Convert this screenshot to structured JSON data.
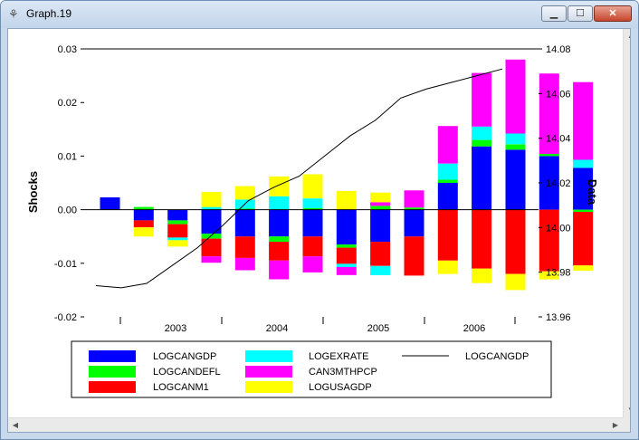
{
  "window": {
    "title": "Graph.19",
    "icons": {
      "app": "graph-app-icon",
      "min": "minimize-icon",
      "max": "maximize-icon",
      "close": "close-icon"
    }
  },
  "chart_data": {
    "type": "bar",
    "stacked": true,
    "title": "",
    "ylabel_left": "Shocks",
    "ylabel_right": "Data",
    "ylim_left": [
      -0.02,
      0.03
    ],
    "ylim_right": [
      13.96,
      14.08
    ],
    "yticks_left": [
      "0.03",
      "0.02",
      "0.01",
      "0.00",
      "-0.01",
      "-0.02"
    ],
    "yticks_right": [
      "14.08",
      "14.06",
      "14.04",
      "14.02",
      "14.00",
      "13.98",
      "13.96"
    ],
    "x_labels": [
      "2003",
      "2004",
      "2005",
      "2006"
    ],
    "periods_per_year": 4,
    "series": [
      {
        "name": "LOGCANGDP",
        "color": "#0000ff",
        "values": [
          0.0023,
          -0.002,
          -0.002,
          -0.0045,
          -0.005,
          -0.005,
          -0.005,
          -0.0065,
          -0.006,
          -0.005,
          0.005,
          0.0118,
          0.0112,
          0.01,
          0.0078
        ]
      },
      {
        "name": "LOGCANDEFL",
        "color": "#00ff00",
        "values": [
          0.0,
          0.0005,
          -0.0007,
          -0.0009,
          0.0002,
          -0.001,
          0.0003,
          -0.0006,
          0.0007,
          0.0004,
          0.0006,
          0.0012,
          0.001,
          0.0004,
          -0.0004
        ]
      },
      {
        "name": "LOGCANM1",
        "color": "#ff0000",
        "values": [
          0.0,
          -0.0013,
          -0.0025,
          -0.0033,
          -0.004,
          -0.0035,
          -0.0037,
          -0.003,
          -0.0045,
          -0.0073,
          -0.0095,
          -0.011,
          -0.012,
          -0.0115,
          -0.01
        ]
      },
      {
        "name": "LOGEXRATE",
        "color": "#00ffff",
        "values": [
          0.0,
          0.0,
          -0.0005,
          0.0005,
          0.0017,
          0.0025,
          0.0018,
          -0.0006,
          -0.0017,
          0.0,
          0.003,
          0.0025,
          0.002,
          0.0,
          0.0015
        ]
      },
      {
        "name": "CAN3MTHPCP",
        "color": "#ff00ff",
        "values": [
          0.0,
          0.0,
          0.0,
          -0.0012,
          -0.0023,
          -0.0035,
          -0.003,
          -0.0015,
          0.0007,
          0.0032,
          0.007,
          0.01,
          0.0138,
          0.015,
          0.0145
        ]
      },
      {
        "name": "LOGUSAGDP",
        "color": "#ffff00",
        "values": [
          0.0,
          -0.0017,
          -0.0012,
          0.0028,
          0.0025,
          0.0037,
          0.0045,
          0.0035,
          0.0018,
          0.0,
          -0.0025,
          -0.0027,
          -0.003,
          -0.0015,
          -0.001
        ]
      }
    ],
    "line_series": {
      "name": "LOGCANGDP",
      "color": "#000000",
      "axis": "right",
      "values": [
        13.974,
        13.973,
        13.975,
        13.983,
        13.991,
        14.001,
        14.012,
        14.018,
        14.023,
        14.032,
        14.041,
        14.048,
        14.058,
        14.062,
        14.065,
        14.068,
        14.071
      ]
    },
    "legend": [
      {
        "label": "LOGCANGDP",
        "color": "#0000ff",
        "kind": "bar"
      },
      {
        "label": "LOGCANDEFL",
        "color": "#00ff00",
        "kind": "bar"
      },
      {
        "label": "LOGCANM1",
        "color": "#ff0000",
        "kind": "bar"
      },
      {
        "label": "LOGEXRATE",
        "color": "#00ffff",
        "kind": "bar"
      },
      {
        "label": "CAN3MTHPCP",
        "color": "#ff00ff",
        "kind": "bar"
      },
      {
        "label": "LOGUSAGDP",
        "color": "#ffff00",
        "kind": "bar"
      },
      {
        "label": "LOGCANGDP",
        "color": "#000000",
        "kind": "line"
      }
    ],
    "legend_placement": "bottom"
  }
}
